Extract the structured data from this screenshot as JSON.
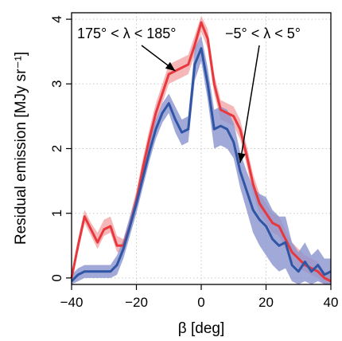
{
  "chart_data": {
    "type": "area",
    "xlabel": "β [deg]",
    "ylabel": "Residual emission   [MJy sr⁻¹]",
    "xlim": [
      -40,
      40
    ],
    "ylim": [
      -0.1,
      4.1
    ],
    "xticks": [
      -40,
      -20,
      0,
      20,
      40
    ],
    "yticks": [
      0,
      1,
      2,
      3,
      4
    ],
    "grid": true,
    "x": [
      -40,
      -38,
      -36,
      -34,
      -32,
      -30,
      -28,
      -26,
      -24,
      -22,
      -20,
      -18,
      -16,
      -14,
      -12,
      -10,
      -8,
      -6,
      -4,
      -2,
      0,
      2,
      4,
      6,
      8,
      10,
      12,
      14,
      16,
      18,
      20,
      22,
      24,
      26,
      28,
      30,
      32,
      34,
      36,
      38,
      40
    ],
    "series": [
      {
        "color": "#e8383d",
        "band_color": "#f2a5a6",
        "values": [
          0.0,
          0.5,
          0.95,
          0.75,
          0.55,
          0.75,
          0.8,
          0.5,
          0.5,
          0.8,
          1.2,
          1.7,
          2.15,
          2.55,
          2.85,
          3.15,
          3.2,
          3.25,
          3.3,
          3.6,
          3.95,
          3.7,
          3.0,
          2.6,
          2.55,
          2.5,
          2.3,
          1.9,
          1.45,
          1.15,
          1.0,
          0.85,
          0.8,
          0.6,
          0.4,
          0.3,
          0.2,
          0.15,
          0.1,
          0.0,
          -0.05
        ],
        "lower": [
          -0.05,
          0.4,
          0.85,
          0.65,
          0.45,
          0.65,
          0.7,
          0.4,
          0.4,
          0.7,
          1.1,
          1.55,
          2.0,
          2.4,
          2.7,
          3.0,
          3.05,
          3.1,
          3.15,
          3.45,
          3.8,
          3.55,
          2.85,
          2.45,
          2.4,
          2.35,
          2.15,
          1.75,
          1.3,
          1.0,
          0.85,
          0.7,
          0.65,
          0.45,
          0.25,
          0.15,
          0.1,
          0.05,
          0.0,
          -0.1,
          -0.1
        ],
        "upper": [
          0.05,
          0.6,
          1.05,
          0.85,
          0.7,
          0.9,
          0.95,
          0.65,
          0.6,
          0.95,
          1.35,
          1.85,
          2.3,
          2.7,
          3.0,
          3.3,
          3.35,
          3.4,
          3.45,
          3.75,
          4.05,
          3.85,
          3.15,
          2.75,
          2.7,
          2.65,
          2.45,
          2.05,
          1.6,
          1.3,
          1.15,
          1.0,
          0.95,
          0.75,
          0.55,
          0.45,
          0.35,
          0.3,
          0.25,
          0.1,
          0.05
        ]
      },
      {
        "color": "#2f55a4",
        "band_color": "#8a93cf",
        "values": [
          -0.05,
          0.05,
          0.1,
          0.1,
          0.1,
          0.1,
          0.1,
          0.2,
          0.45,
          0.8,
          1.15,
          1.55,
          1.95,
          2.3,
          2.55,
          2.7,
          2.45,
          2.25,
          2.3,
          3.3,
          3.55,
          3.0,
          2.3,
          2.35,
          2.3,
          2.1,
          1.65,
          1.35,
          1.05,
          0.9,
          0.8,
          0.6,
          0.5,
          0.55,
          0.2,
          0.1,
          0.25,
          0.1,
          0.2,
          0.05,
          0.1
        ],
        "lower": [
          -0.1,
          -0.05,
          0.0,
          0.0,
          0.0,
          0.0,
          0.0,
          0.05,
          0.3,
          0.65,
          1.0,
          1.4,
          1.8,
          2.15,
          2.4,
          2.55,
          2.25,
          2.05,
          2.1,
          3.05,
          3.35,
          2.75,
          2.0,
          2.05,
          2.0,
          1.85,
          1.4,
          1.05,
          0.7,
          0.5,
          0.35,
          0.2,
          0.1,
          0.15,
          -0.05,
          -0.1,
          -0.05,
          -0.1,
          -0.05,
          -0.1,
          -0.1
        ],
        "upper": [
          0.05,
          0.15,
          0.2,
          0.2,
          0.2,
          0.2,
          0.2,
          0.35,
          0.6,
          0.95,
          1.3,
          1.7,
          2.1,
          2.45,
          2.7,
          2.85,
          2.65,
          2.45,
          2.5,
          3.55,
          3.75,
          3.25,
          2.6,
          2.65,
          2.6,
          2.4,
          1.95,
          1.65,
          1.4,
          1.3,
          1.25,
          1.05,
          0.95,
          0.95,
          0.55,
          0.4,
          0.55,
          0.35,
          0.45,
          0.3,
          0.3
        ]
      }
    ],
    "annotations": [
      {
        "text": "175° < λ < 185°",
        "arrow_to": [
          -8,
          3.2
        ]
      },
      {
        "text": "−5° < λ < 5°",
        "arrow_to": [
          12,
          1.78
        ]
      }
    ]
  }
}
